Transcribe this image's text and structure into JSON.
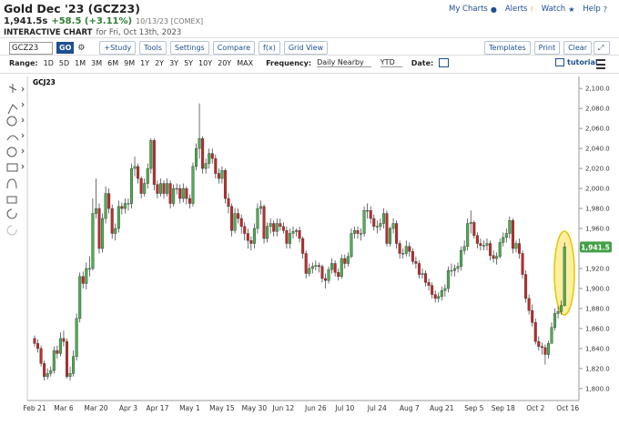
{
  "header": {
    "title": "Gold Dec '23 (GCZ23)",
    "price": "1,941.5s",
    "change": "+58.5 (+3.11%)",
    "date_exchange": "10/13/23 [COMEX]",
    "chart_label": "INTERACTIVE CHART",
    "chart_date": "for Fri, Oct 13th, 2023",
    "links": [
      "My Charts",
      "Alerts",
      "Watch",
      "Help"
    ]
  },
  "toolbar": {
    "symbol": "GCZ23",
    "go": "GO",
    "buttons": [
      "+Study",
      "Tools",
      "Settings",
      "Compare",
      "f(x)",
      "Grid View"
    ],
    "right_buttons": [
      "Templates",
      "Print",
      "Clear"
    ]
  },
  "range_bar": {
    "range_label": "Range:",
    "ranges": [
      "1D",
      "5D",
      "1M",
      "3M",
      "6M",
      "9M",
      "1Y",
      "2Y",
      "3Y",
      "5Y",
      "10Y",
      "20Y",
      "MAX"
    ],
    "frequency_label": "Frequency:",
    "frequency": "Daily Nearby",
    "period": "YTD",
    "date_label": "Date:",
    "tutorial": "tutorial"
  },
  "chart_data": {
    "type": "candlestick",
    "label": "GCJ23",
    "up_color": "#4caf50",
    "down_color": "#c62828",
    "categories": [
      "Feb 21",
      null,
      null,
      null,
      null,
      null,
      null,
      null,
      null,
      "Mar 6",
      null,
      null,
      null,
      null,
      null,
      null,
      null,
      null,
      null,
      "Mar 20",
      null,
      null,
      null,
      null,
      null,
      null,
      null,
      null,
      null,
      "Apr 3",
      null,
      null,
      null,
      null,
      null,
      null,
      null,
      null,
      "Apr 17",
      null,
      null,
      null,
      null,
      null,
      null,
      null,
      null,
      null,
      "May 1",
      null,
      null,
      null,
      null,
      null,
      null,
      null,
      null,
      null,
      "May 15",
      null,
      null,
      null,
      null,
      null,
      null,
      null,
      null,
      null,
      "May 30",
      null,
      null,
      null,
      null,
      null,
      null,
      null,
      null,
      "Jun 12",
      null,
      null,
      null,
      null,
      null,
      null,
      null,
      null,
      null,
      "Jun 26",
      null,
      null,
      null,
      null,
      null,
      null,
      null,
      null,
      "Jul 10",
      null,
      null,
      null,
      null,
      null,
      null,
      null,
      null,
      null,
      "Jul 24",
      null,
      null,
      null,
      null,
      null,
      null,
      null,
      null,
      null,
      "Aug 7",
      null,
      null,
      null,
      null,
      null,
      null,
      null,
      null,
      null,
      "Aug 21",
      null,
      null,
      null,
      null,
      null,
      null,
      null,
      null,
      null,
      "Sep 5",
      null,
      null,
      null,
      null,
      null,
      null,
      null,
      null,
      "Sep 18",
      null,
      null,
      null,
      null,
      null,
      null,
      null,
      null,
      null,
      "Oct 2",
      null,
      null,
      null,
      null,
      null,
      null,
      null,
      null,
      null,
      "Oct 16"
    ],
    "open": [
      1850,
      1845,
      1840,
      1825,
      1812,
      1815,
      1818,
      1838,
      1835,
      1850,
      1847,
      1812,
      1815,
      1832,
      1870,
      1912,
      1905,
      1920,
      1920,
      1975,
      1980,
      1940,
      1970,
      1995,
      1980,
      1955,
      1960,
      1982,
      1980,
      1985,
      1985,
      2020,
      2022,
      2010,
      1995,
      2005,
      2020,
      2048,
      2004,
      1995,
      2005,
      1995,
      2005,
      1985,
      2000,
      2000,
      1990,
      2000,
      1990,
      1985,
      2022,
      2040,
      2050,
      2020,
      2025,
      2035,
      2030,
      2015,
      2010,
      2018,
      1990,
      1982,
      1958,
      1975,
      1970,
      1962,
      1955,
      1948,
      1945,
      1960,
      1980,
      1982,
      1950,
      1962,
      1965,
      1957,
      1965,
      1962,
      1958,
      1945,
      1955,
      1957,
      1958,
      1950,
      1935,
      1915,
      1920,
      1922,
      1923,
      1922,
      1910,
      1908,
      1919,
      1925,
      1916,
      1912,
      1930,
      1925,
      1932,
      1955,
      1958,
      1955,
      1955,
      1978,
      1978,
      1970,
      1962,
      1962,
      1965,
      1975,
      1945,
      1960,
      1965,
      1945,
      1935,
      1935,
      1942,
      1937,
      1927,
      1925,
      1914,
      1915,
      1906,
      1903,
      1894,
      1890,
      1892,
      1898,
      1900,
      1918,
      1918,
      1920,
      1922,
      1938,
      1942,
      1965,
      1966,
      1953,
      1945,
      1943,
      1943,
      1945,
      1933,
      1930,
      1932,
      1946,
      1951,
      1955,
      1968,
      1940,
      1945,
      1935,
      1914,
      1890,
      1878,
      1866,
      1847,
      1842,
      1841,
      1834,
      1845,
      1861,
      1875,
      1877,
      1883,
      null
    ],
    "high": [
      1853,
      1849,
      1843,
      1828,
      1820,
      1822,
      1842,
      1843,
      1856,
      1858,
      1850,
      1822,
      1838,
      1875,
      1916,
      1917,
      1926,
      1932,
      1990,
      2010,
      1985,
      1975,
      2002,
      2000,
      1984,
      1965,
      1988,
      1986,
      1990,
      1990,
      2025,
      2032,
      2025,
      2012,
      2010,
      2025,
      2050,
      2050,
      2008,
      2010,
      2008,
      2010,
      2008,
      2004,
      2005,
      2004,
      2005,
      2002,
      1994,
      2026,
      2045,
      2085,
      2052,
      2030,
      2040,
      2040,
      2034,
      2020,
      2022,
      2020,
      1995,
      1985,
      1980,
      1980,
      1974,
      1966,
      1960,
      1952,
      1965,
      1985,
      1988,
      1984,
      1966,
      1970,
      1968,
      1970,
      1970,
      1966,
      1962,
      1960,
      1962,
      1960,
      1962,
      1952,
      1938,
      1925,
      1926,
      1928,
      1926,
      1924,
      1915,
      1922,
      1930,
      1928,
      1920,
      1934,
      1934,
      1936,
      1960,
      1962,
      1962,
      1960,
      1982,
      1985,
      1982,
      1974,
      1968,
      1970,
      1980,
      1978,
      1962,
      1970,
      1968,
      1948,
      1940,
      1948,
      1946,
      1940,
      1932,
      1928,
      1920,
      1918,
      1910,
      1906,
      1898,
      1896,
      1902,
      1904,
      1922,
      1925,
      1924,
      1926,
      1942,
      1948,
      1970,
      1978,
      1968,
      1956,
      1950,
      1948,
      1950,
      1948,
      1938,
      1936,
      1950,
      1956,
      1960,
      1972,
      1970,
      1948,
      1950,
      1938,
      1918,
      1894,
      1884,
      1870,
      1852,
      1846,
      1844,
      1848,
      1866,
      1880,
      1882,
      1888,
      1946,
      null
    ],
    "low": [
      1842,
      1836,
      1822,
      1808,
      1809,
      1812,
      1815,
      1830,
      1832,
      1842,
      1810,
      1808,
      1812,
      1828,
      1866,
      1900,
      1899,
      1912,
      1918,
      1970,
      1935,
      1936,
      1965,
      1975,
      1950,
      1948,
      1956,
      1974,
      1975,
      1978,
      1980,
      2012,
      2005,
      1990,
      1992,
      2000,
      2015,
      1998,
      1990,
      1992,
      1990,
      1992,
      1980,
      1982,
      1994,
      1985,
      1986,
      1984,
      1980,
      1982,
      2018,
      2030,
      2015,
      2015,
      2020,
      2025,
      2010,
      2005,
      2005,
      1985,
      1975,
      1952,
      1955,
      1965,
      1955,
      1948,
      1940,
      1938,
      1940,
      1955,
      1974,
      1945,
      1946,
      1955,
      1952,
      1952,
      1958,
      1955,
      1940,
      1940,
      1950,
      1952,
      1946,
      1930,
      1910,
      1912,
      1915,
      1918,
      1916,
      1906,
      1900,
      1905,
      1915,
      1912,
      1908,
      1910,
      1920,
      1922,
      1930,
      1950,
      1950,
      1948,
      1952,
      1970,
      1965,
      1958,
      1955,
      1958,
      1960,
      1942,
      1942,
      1955,
      1940,
      1930,
      1930,
      1932,
      1932,
      1924,
      1920,
      1910,
      1910,
      1902,
      1898,
      1890,
      1886,
      1886,
      1888,
      1892,
      1896,
      1912,
      1912,
      1916,
      1918,
      1934,
      1938,
      1955,
      1950,
      1940,
      1938,
      1938,
      1938,
      1928,
      1926,
      1924,
      1930,
      1942,
      1946,
      1950,
      1935,
      1936,
      1930,
      1910,
      1886,
      1874,
      1862,
      1844,
      1838,
      1834,
      1824,
      1830,
      1845,
      1858,
      1870,
      1874,
      1882,
      null
    ],
    "close": [
      1845,
      1840,
      1825,
      1812,
      1815,
      1818,
      1838,
      1835,
      1850,
      1847,
      1812,
      1815,
      1832,
      1870,
      1912,
      1905,
      1920,
      1920,
      1975,
      1980,
      1940,
      1970,
      1995,
      1980,
      1955,
      1960,
      1982,
      1980,
      1985,
      1985,
      2020,
      2022,
      2010,
      1995,
      2005,
      2020,
      2048,
      2004,
      1995,
      2005,
      1995,
      2005,
      1985,
      2000,
      2000,
      1990,
      2000,
      1990,
      1985,
      2022,
      2040,
      2050,
      2020,
      2025,
      2035,
      2030,
      2015,
      2010,
      2018,
      1990,
      1982,
      1958,
      1975,
      1970,
      1962,
      1955,
      1948,
      1945,
      1960,
      1980,
      1982,
      1950,
      1962,
      1965,
      1957,
      1965,
      1962,
      1958,
      1945,
      1955,
      1957,
      1958,
      1950,
      1935,
      1915,
      1920,
      1922,
      1923,
      1922,
      1910,
      1908,
      1919,
      1925,
      1916,
      1912,
      1930,
      1925,
      1932,
      1955,
      1958,
      1955,
      1955,
      1978,
      1978,
      1970,
      1962,
      1962,
      1965,
      1975,
      1945,
      1960,
      1965,
      1945,
      1935,
      1935,
      1942,
      1937,
      1927,
      1925,
      1914,
      1915,
      1906,
      1903,
      1894,
      1890,
      1892,
      1898,
      1900,
      1918,
      1918,
      1920,
      1922,
      1938,
      1942,
      1965,
      1966,
      1953,
      1945,
      1943,
      1943,
      1945,
      1933,
      1930,
      1932,
      1946,
      1951,
      1955,
      1968,
      1940,
      1945,
      1935,
      1914,
      1890,
      1878,
      1866,
      1847,
      1842,
      1841,
      1834,
      1845,
      1861,
      1875,
      1877,
      1883,
      1941.5,
      null
    ],
    "ylim": [
      1788,
      2112
    ],
    "yticks": [
      {
        "value": 1800,
        "label": "1,800.0"
      },
      {
        "value": 1820,
        "label": "1,820.0"
      },
      {
        "value": 1840,
        "label": "1,840.0"
      },
      {
        "value": 1860,
        "label": "1,860.0"
      },
      {
        "value": 1880,
        "label": "1,880.0"
      },
      {
        "value": 1900,
        "label": "1,900.0"
      },
      {
        "value": 1920,
        "label": "1,920.0"
      },
      {
        "value": 1940,
        "label": "1,940.0"
      },
      {
        "value": 1960,
        "label": "1,960.0"
      },
      {
        "value": 1980,
        "label": "1,980.0"
      },
      {
        "value": 2000,
        "label": "2,000.0"
      },
      {
        "value": 2020,
        "label": "2,020.0"
      },
      {
        "value": 2040,
        "label": "2,040.0"
      },
      {
        "value": 2060,
        "label": "2,060.0"
      },
      {
        "value": 2080,
        "label": "2,080.0"
      },
      {
        "value": 2100,
        "label": "2,100.0"
      }
    ],
    "last": {
      "value": 1941.5,
      "label": "1,941.5",
      "color": "#43a047"
    }
  }
}
